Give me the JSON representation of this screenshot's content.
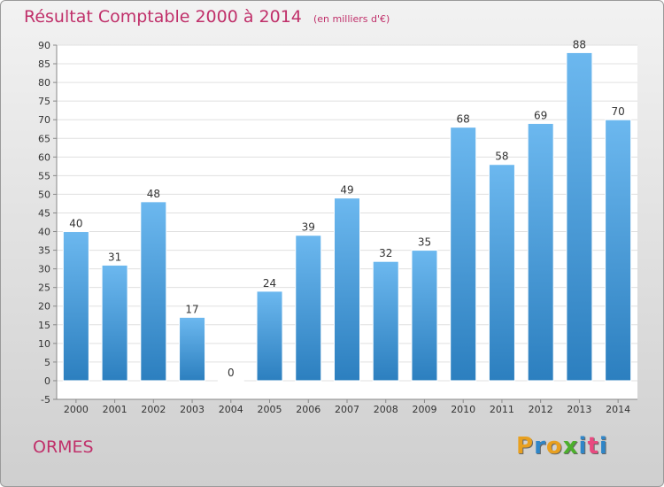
{
  "header": {
    "title": "Résultat Comptable 2000 à 2014",
    "subtitle": "(en milliers d'€)"
  },
  "footer": {
    "commune": "ORMES",
    "logo_text": "Proxiti",
    "logo_colors": [
      "#e8a020",
      "#2f86c8",
      "#e8a020",
      "#4caf2c",
      "#2f86c8",
      "#e94a80",
      "#2f86c8"
    ]
  },
  "chart_data": {
    "type": "bar",
    "title": "Résultat Comptable 2000 à 2014",
    "subtitle": "(en milliers d'€)",
    "categories": [
      "2000",
      "2001",
      "2002",
      "2003",
      "2004",
      "2005",
      "2006",
      "2007",
      "2008",
      "2009",
      "2010",
      "2011",
      "2012",
      "2013",
      "2014"
    ],
    "values": [
      40,
      31,
      48,
      17,
      0,
      24,
      39,
      49,
      32,
      35,
      68,
      58,
      69,
      88,
      70
    ],
    "ylim": [
      -5,
      90
    ],
    "yticks": [
      -5,
      0,
      5,
      10,
      15,
      20,
      25,
      30,
      35,
      40,
      45,
      50,
      55,
      60,
      65,
      70,
      75,
      80,
      85,
      90
    ],
    "grid": true,
    "bar_color_light": "#6cb8ef",
    "bar_color_dark": "#2c7fbf",
    "label_color": "#333333"
  }
}
